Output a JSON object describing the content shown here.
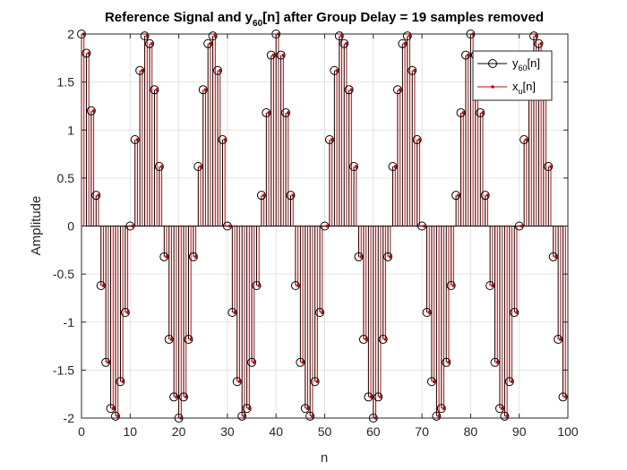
{
  "chart_data": {
    "type": "stem",
    "title": {
      "prefix": "Reference Signal and y",
      "subscript": "60",
      "suffix": "[n] after Group Delay = 19 samples removed"
    },
    "xlabel": "n",
    "ylabel": "Amplitude",
    "xlim": [
      0,
      100
    ],
    "ylim": [
      -2,
      2
    ],
    "xticks": [
      0,
      10,
      20,
      30,
      40,
      50,
      60,
      70,
      80,
      90,
      100
    ],
    "yticks": [
      -2,
      -1.5,
      -1,
      -0.5,
      0,
      0.5,
      1,
      1.5,
      2
    ],
    "grid": true,
    "legend_position": "top-right",
    "series": [
      {
        "base": "y",
        "subscript": "60",
        "suffix": "[n]",
        "marker": "open-circle",
        "color": "#000000",
        "x": [
          0,
          1,
          2,
          3,
          4,
          5,
          6,
          7,
          8,
          9,
          10,
          11,
          12,
          13,
          14,
          15,
          16,
          17,
          18,
          19,
          20,
          21,
          22,
          23,
          24,
          25,
          26,
          27,
          28,
          29,
          30,
          31,
          32,
          33,
          34,
          35,
          36,
          37,
          38,
          39,
          40,
          41,
          42,
          43,
          44,
          45,
          46,
          47,
          48,
          49,
          50,
          51,
          52,
          53,
          54,
          55,
          56,
          57,
          58,
          59,
          60,
          61,
          62,
          63,
          64,
          65,
          66,
          67,
          68,
          69,
          70,
          71,
          72,
          73,
          74,
          75,
          76,
          77,
          78,
          79,
          80,
          81,
          82,
          83,
          84,
          85,
          86,
          87,
          88,
          89,
          90,
          91,
          92,
          93,
          94,
          95,
          96,
          97,
          98,
          99
        ],
        "y": [
          2.0,
          1.8,
          1.2,
          0.32,
          -0.62,
          -1.42,
          -1.9,
          -1.98,
          -1.62,
          -0.9,
          0.0,
          0.9,
          1.62,
          1.98,
          1.9,
          1.42,
          0.62,
          -0.32,
          -1.18,
          -1.78,
          -2.0,
          -1.78,
          -1.18,
          -0.32,
          0.62,
          1.42,
          1.9,
          1.98,
          1.62,
          0.9,
          0.0,
          -0.9,
          -1.62,
          -1.98,
          -1.9,
          -1.42,
          -0.62,
          0.32,
          1.18,
          1.78,
          2.0,
          1.78,
          1.18,
          0.32,
          -0.62,
          -1.42,
          -1.9,
          -1.98,
          -1.62,
          -0.9,
          0.0,
          0.9,
          1.62,
          1.98,
          1.9,
          1.42,
          0.62,
          -0.32,
          -1.18,
          -1.78,
          -2.0,
          -1.78,
          -1.18,
          -0.32,
          0.62,
          1.42,
          1.9,
          1.98,
          1.62,
          0.9,
          0.0,
          -0.9,
          -1.62,
          -1.98,
          -1.9,
          -1.42,
          -0.62,
          0.32,
          1.18,
          1.78,
          2.0,
          1.78,
          1.18,
          0.32,
          -0.62,
          -1.42,
          -1.9,
          -1.98,
          -1.62,
          -0.9,
          0.0,
          0.9,
          1.62,
          1.98,
          1.9,
          1.42,
          0.62,
          -0.32,
          -1.18,
          -1.78
        ]
      },
      {
        "base": "x",
        "subscript": "u",
        "suffix": "[n]",
        "marker": "stem-dot",
        "color": "#cc0000",
        "x": [
          0,
          1,
          2,
          3,
          4,
          5,
          6,
          7,
          8,
          9,
          10,
          11,
          12,
          13,
          14,
          15,
          16,
          17,
          18,
          19,
          20,
          21,
          22,
          23,
          24,
          25,
          26,
          27,
          28,
          29,
          30,
          31,
          32,
          33,
          34,
          35,
          36,
          37,
          38,
          39,
          40,
          41,
          42,
          43,
          44,
          45,
          46,
          47,
          48,
          49,
          50,
          51,
          52,
          53,
          54,
          55,
          56,
          57,
          58,
          59,
          60,
          61,
          62,
          63,
          64,
          65,
          66,
          67,
          68,
          69,
          70,
          71,
          72,
          73,
          74,
          75,
          76,
          77,
          78,
          79,
          80,
          81,
          82,
          83,
          84,
          85,
          86,
          87,
          88,
          89,
          90,
          91,
          92,
          93,
          94,
          95,
          96,
          97,
          98,
          99
        ],
        "y": [
          2.0,
          1.8,
          1.2,
          0.32,
          -0.62,
          -1.42,
          -1.9,
          -1.98,
          -1.62,
          -0.9,
          0.0,
          0.9,
          1.62,
          1.98,
          1.9,
          1.42,
          0.62,
          -0.32,
          -1.18,
          -1.78,
          -2.0,
          -1.78,
          -1.18,
          -0.32,
          0.62,
          1.42,
          1.9,
          1.98,
          1.62,
          0.9,
          0.0,
          -0.9,
          -1.62,
          -1.98,
          -1.9,
          -1.42,
          -0.62,
          0.32,
          1.18,
          1.78,
          2.0,
          1.78,
          1.18,
          0.32,
          -0.62,
          -1.42,
          -1.9,
          -1.98,
          -1.62,
          -0.9,
          0.0,
          0.9,
          1.62,
          1.98,
          1.9,
          1.42,
          0.62,
          -0.32,
          -1.18,
          -1.78,
          -2.0,
          -1.78,
          -1.18,
          -0.32,
          0.62,
          1.42,
          1.9,
          1.98,
          1.62,
          0.9,
          0.0,
          -0.9,
          -1.62,
          -1.98,
          -1.9,
          -1.42,
          -0.62,
          0.32,
          1.18,
          1.78,
          2.0,
          1.78,
          1.18,
          0.32,
          -0.62,
          -1.42,
          -1.9,
          -1.98,
          -1.62,
          -0.9,
          0.0,
          0.9,
          1.62,
          1.98,
          1.9,
          1.42,
          0.62,
          -0.32,
          -1.18,
          -1.78
        ]
      }
    ]
  }
}
